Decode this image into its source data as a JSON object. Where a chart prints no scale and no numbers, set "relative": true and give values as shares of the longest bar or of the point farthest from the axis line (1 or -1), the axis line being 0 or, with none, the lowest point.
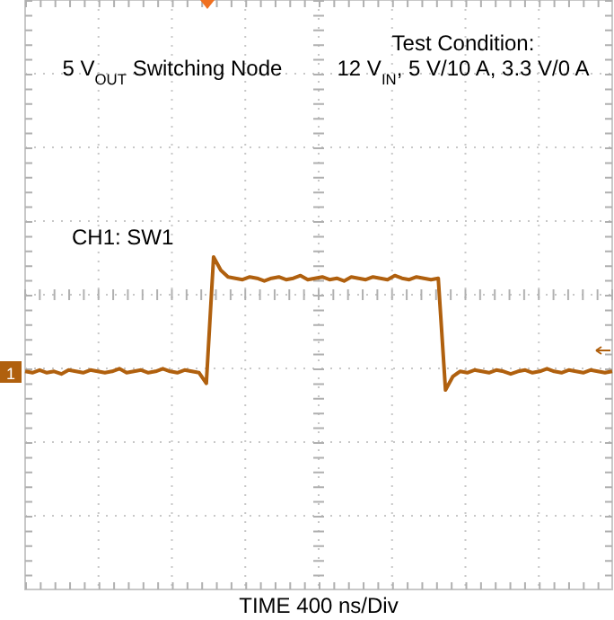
{
  "chart_data": {
    "type": "line",
    "relative": true,
    "title": "5 V$_{OUT}$ Switching Node",
    "annotations": [
      "Test Condition:",
      "12 V$_{IN}$, 5 V/10 A, 3.3 V/0 A",
      "CH1: SW1",
      "1",
      "TIME 400 ns/Div"
    ],
    "categories": [
      null,
      null,
      null,
      null,
      null,
      null,
      null,
      null,
      null,
      null,
      null,
      null,
      null,
      null,
      null,
      null,
      null,
      null,
      null,
      null,
      null,
      null,
      null,
      null,
      null,
      null,
      null,
      null,
      null,
      null,
      null,
      null,
      null,
      null,
      null,
      null,
      null,
      null,
      null,
      null,
      null,
      null,
      null,
      null,
      null,
      null,
      null,
      null,
      null,
      null,
      null,
      null,
      null,
      null,
      null,
      null,
      null,
      null,
      null,
      null,
      null,
      null,
      null,
      null,
      null,
      null,
      null,
      null,
      null,
      null,
      null,
      null,
      null,
      null,
      null,
      null,
      null,
      null,
      null,
      null,
      null,
      null
    ],
    "series": [
      {
        "color": "#b0600e",
        "values": [
          0.656,
          0.652,
          0.66,
          0.652,
          0.656,
          0.648,
          0.66,
          0.656,
          0.652,
          0.66,
          0.656,
          0.652,
          0.656,
          0.664,
          0.652,
          0.656,
          0.66,
          0.652,
          0.656,
          0.664,
          0.656,
          0.652,
          0.66,
          0.656,
          0.652,
          0.62,
          1,
          0.96,
          0.94,
          0.936,
          0.932,
          0.94,
          0.936,
          0.928,
          0.936,
          0.94,
          0.932,
          0.936,
          0.944,
          0.932,
          0.936,
          0.94,
          0.932,
          0.936,
          0.928,
          0.94,
          0.936,
          0.932,
          0.94,
          0.936,
          0.932,
          0.944,
          0.936,
          0.932,
          0.94,
          0.936,
          0.932,
          0.936,
          0.6,
          0.64,
          0.656,
          0.652,
          0.66,
          0.656,
          0.652,
          0.66,
          0.656,
          0.648,
          0.656,
          0.66,
          0.652,
          0.656,
          0.664,
          0.656,
          0.652,
          0.66,
          0.656,
          0.652,
          0.66,
          0.656,
          0.652,
          0.656
        ]
      }
    ],
    "grid": true,
    "line_style": "solid",
    "marker": "none"
  }
}
